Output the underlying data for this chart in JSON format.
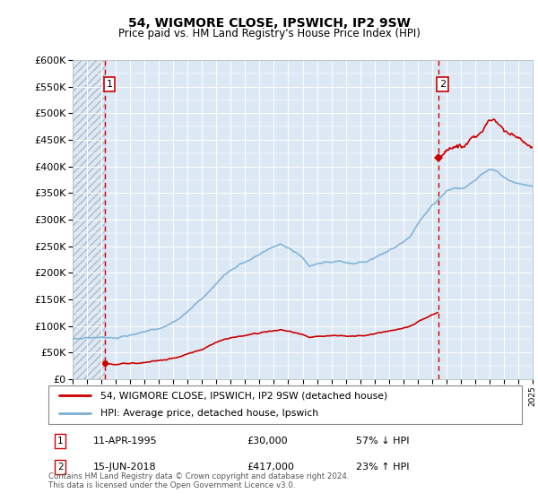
{
  "title": "54, WIGMORE CLOSE, IPSWICH, IP2 9SW",
  "subtitle": "Price paid vs. HM Land Registry's House Price Index (HPI)",
  "legend_line1": "54, WIGMORE CLOSE, IPSWICH, IP2 9SW (detached house)",
  "legend_line2": "HPI: Average price, detached house, Ipswich",
  "annotation1_label": "1",
  "annotation1_date": "11-APR-1995",
  "annotation1_price": "£30,000",
  "annotation1_hpi": "57% ↓ HPI",
  "annotation2_label": "2",
  "annotation2_date": "15-JUN-2018",
  "annotation2_price": "£417,000",
  "annotation2_hpi": "23% ↑ HPI",
  "footnote": "Contains HM Land Registry data © Crown copyright and database right 2024.\nThis data is licensed under the Open Government Licence v3.0.",
  "sale1_x": 1995.27,
  "sale1_y": 30000,
  "sale2_x": 2018.45,
  "sale2_y": 417000,
  "hpi_color": "#7bafd4",
  "price_color": "#cc0000",
  "vline_color": "#cc0000",
  "plot_bg": "#dce9f5",
  "ylim": [
    0,
    600000
  ],
  "ytick_step": 50000,
  "xmin": 1993,
  "xmax": 2025
}
